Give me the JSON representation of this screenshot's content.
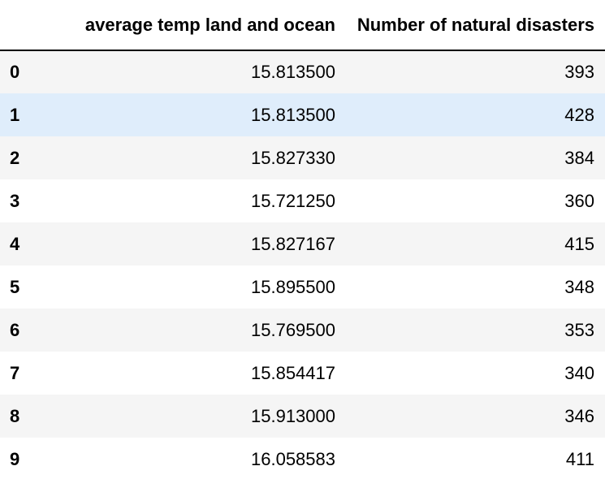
{
  "table": {
    "columns": [
      "",
      "average temp land and ocean",
      "Number of natural disasters"
    ],
    "rows": [
      {
        "index": "0",
        "avg_temp": "15.813500",
        "disasters": "393"
      },
      {
        "index": "1",
        "avg_temp": "15.813500",
        "disasters": "428"
      },
      {
        "index": "2",
        "avg_temp": "15.827330",
        "disasters": "384"
      },
      {
        "index": "3",
        "avg_temp": "15.721250",
        "disasters": "360"
      },
      {
        "index": "4",
        "avg_temp": "15.827167",
        "disasters": "415"
      },
      {
        "index": "5",
        "avg_temp": "15.895500",
        "disasters": "348"
      },
      {
        "index": "6",
        "avg_temp": "15.769500",
        "disasters": "353"
      },
      {
        "index": "7",
        "avg_temp": "15.854417",
        "disasters": "340"
      },
      {
        "index": "8",
        "avg_temp": "15.913000",
        "disasters": "346"
      },
      {
        "index": "9",
        "avg_temp": "16.058583",
        "disasters": "411"
      }
    ],
    "highlighted_row": 1,
    "colors": {
      "striped_row": "#f5f5f5",
      "hover_row": "#dfedfb",
      "header_rule": "#000000"
    }
  }
}
